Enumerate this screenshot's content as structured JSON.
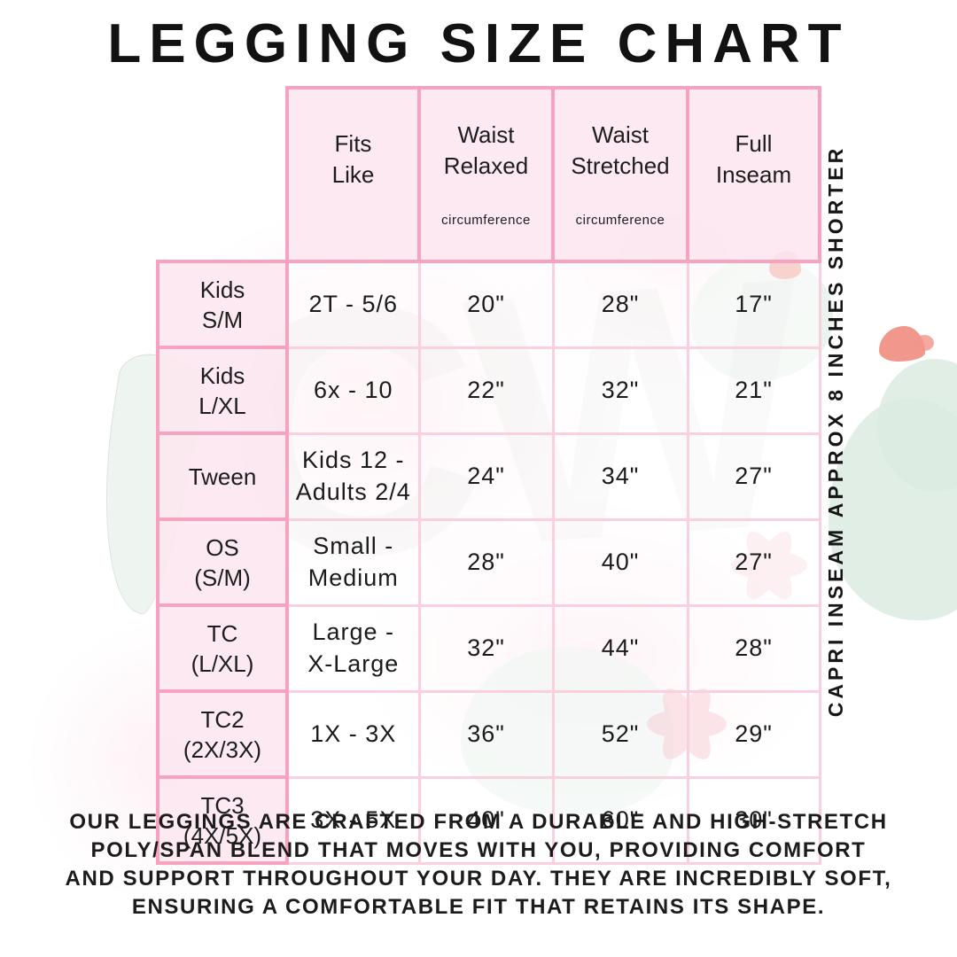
{
  "title": "LEGGING SIZE CHART",
  "side_note": "CAPRI INSEAM APPROX 8 INCHES SHORTER",
  "watermark": {
    "monogram": "CW"
  },
  "size_table": {
    "headers": [
      {
        "label": "Fits\nLike",
        "sub": ""
      },
      {
        "label": "Waist\nRelaxed",
        "sub": "circumference"
      },
      {
        "label": "Waist\nStretched",
        "sub": "circumference"
      },
      {
        "label": "Full\nInseam",
        "sub": ""
      }
    ],
    "rows": [
      {
        "label": "Kids\nS/M",
        "fits": "2T - 5/6",
        "relaxed": "20\"",
        "stretched": "28\"",
        "inseam": "17\""
      },
      {
        "label": "Kids\nL/XL",
        "fits": "6x - 10",
        "relaxed": "22\"",
        "stretched": "32\"",
        "inseam": "21\""
      },
      {
        "label": "Tween",
        "fits": "Kids 12 -\nAdults 2/4",
        "relaxed": "24\"",
        "stretched": "34\"",
        "inseam": "27\""
      },
      {
        "label": "OS\n(S/M)",
        "fits": "Small -\nMedium",
        "relaxed": "28\"",
        "stretched": "40\"",
        "inseam": "27\""
      },
      {
        "label": "TC\n(L/XL)",
        "fits": "Large -\nX-Large",
        "relaxed": "32\"",
        "stretched": "44\"",
        "inseam": "28\""
      },
      {
        "label": "TC2\n(2X/3X)",
        "fits": "1X - 3X",
        "relaxed": "36\"",
        "stretched": "52\"",
        "inseam": "29\""
      },
      {
        "label": "TC3\n(4X/5X)",
        "fits": "3X - 5X",
        "relaxed": "40\"",
        "stretched": "60\"",
        "inseam": "30\""
      }
    ]
  },
  "description": {
    "text": "OUR LEGGINGS ARE CRAFTED FROM A DURABLE AND HIGH-STRETCH\nPOLY/SPAN BLEND THAT MOVES WITH YOU, PROVIDING COMFORT\nAND SUPPORT THROUGHOUT YOUR DAY. THEY ARE INCREDIBLY SOFT,\nENSURING A COMFORTABLE FIT THAT RETAINS ITS SHAPE."
  },
  "colors": {
    "table_border": "#f7a3c0",
    "table_grid": "#fbd0de",
    "header_fill": "#fce7f0",
    "text": "#1c1c1c",
    "watermark_mint": "#dcebe2",
    "watermark_coral": "#ef8578",
    "watermark_pink": "#f9cdd8"
  }
}
